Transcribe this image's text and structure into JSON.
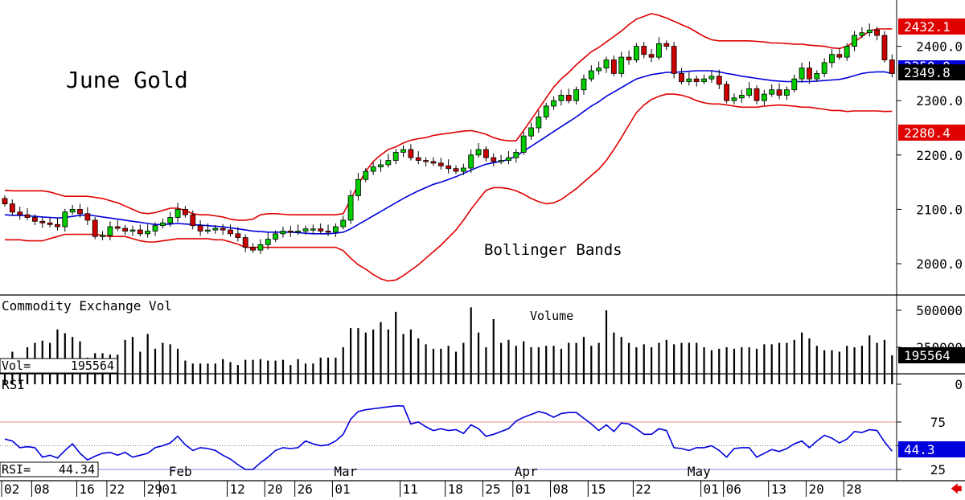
{
  "chart_data": [
    {
      "type": "candlestick",
      "title": "June Gold",
      "annotation": "Bollinger Bands",
      "ylim": [
        1960,
        2470
      ],
      "y_ticks": [
        "2400.0",
        "2300.0",
        "2200.0",
        "2100.0",
        "2000.0"
      ],
      "last_price": "2349.8",
      "upper_band_label": "2432.1",
      "lower_band_label": "2280.4",
      "mid_band_label_partial": "2350.0",
      "colors": {
        "up": "#00cc00",
        "down": "#cc0000",
        "upper_band": "#e00000",
        "lower_band": "#e00000",
        "mid_band": "#0000dd"
      },
      "closes": [
        2110,
        2095,
        2090,
        2085,
        2078,
        2075,
        2072,
        2068,
        2095,
        2100,
        2092,
        2080,
        2050,
        2052,
        2068,
        2065,
        2060,
        2062,
        2055,
        2060,
        2070,
        2075,
        2085,
        2100,
        2090,
        2070,
        2060,
        2062,
        2065,
        2062,
        2055,
        2048,
        2030,
        2025,
        2035,
        2045,
        2055,
        2060,
        2058,
        2060,
        2064,
        2064,
        2060,
        2058,
        2068,
        2080,
        2125,
        2155,
        2170,
        2178,
        2182,
        2190,
        2205,
        2210,
        2195,
        2190,
        2188,
        2185,
        2180,
        2175,
        2170,
        2176,
        2200,
        2210,
        2195,
        2188,
        2190,
        2195,
        2205,
        2235,
        2250,
        2270,
        2290,
        2300,
        2310,
        2300,
        2320,
        2340,
        2355,
        2360,
        2375,
        2350,
        2380,
        2375,
        2400,
        2385,
        2380,
        2405,
        2400,
        2350,
        2335,
        2340,
        2335,
        2340,
        2345,
        2330,
        2300,
        2305,
        2310,
        2322,
        2300,
        2312,
        2320,
        2310,
        2320,
        2340,
        2360,
        2340,
        2350,
        2370,
        2385,
        2380,
        2400,
        2420,
        2425,
        2430,
        2420,
        2375,
        2349.8
      ],
      "upper_band": [
        2135,
        2134,
        2134,
        2134,
        2134,
        2134,
        2132,
        2128,
        2124,
        2124,
        2124,
        2124,
        2122,
        2120,
        2116,
        2112,
        2106,
        2100,
        2094,
        2092,
        2094,
        2098,
        2102,
        2102,
        2098,
        2092,
        2090,
        2090,
        2088,
        2086,
        2082,
        2080,
        2080,
        2082,
        2090,
        2092,
        2092,
        2091,
        2090,
        2090,
        2090,
        2090,
        2090,
        2090,
        2090,
        2092,
        2118,
        2145,
        2170,
        2188,
        2200,
        2210,
        2215,
        2222,
        2227,
        2230,
        2232,
        2236,
        2238,
        2240,
        2242,
        2244,
        2245,
        2242,
        2238,
        2232,
        2228,
        2226,
        2226,
        2245,
        2265,
        2285,
        2305,
        2325,
        2340,
        2352,
        2366,
        2378,
        2390,
        2398,
        2408,
        2418,
        2428,
        2440,
        2450,
        2455,
        2460,
        2457,
        2452,
        2446,
        2440,
        2434,
        2426,
        2418,
        2412,
        2410,
        2410,
        2410,
        2410,
        2410,
        2409,
        2408,
        2406,
        2406,
        2405,
        2404,
        2404,
        2402,
        2401,
        2400,
        2397,
        2396,
        2400,
        2408,
        2418,
        2428,
        2432,
        2432,
        2432.1
      ],
      "mid_band": [
        2090,
        2089,
        2089,
        2088,
        2087,
        2086,
        2085,
        2084,
        2085,
        2087,
        2089,
        2090,
        2088,
        2086,
        2084,
        2082,
        2080,
        2078,
        2076,
        2074,
        2072,
        2072,
        2073,
        2074,
        2073,
        2072,
        2071,
        2070,
        2069,
        2068,
        2066,
        2064,
        2062,
        2060,
        2059,
        2058,
        2058,
        2058,
        2058,
        2057,
        2056,
        2055,
        2055,
        2055,
        2056,
        2058,
        2064,
        2072,
        2080,
        2088,
        2096,
        2104,
        2112,
        2120,
        2127,
        2134,
        2140,
        2146,
        2150,
        2155,
        2160,
        2166,
        2172,
        2178,
        2183,
        2186,
        2188,
        2192,
        2198,
        2207,
        2216,
        2225,
        2234,
        2243,
        2252,
        2261,
        2270,
        2280,
        2290,
        2298,
        2308,
        2316,
        2324,
        2332,
        2340,
        2344,
        2348,
        2350,
        2352,
        2352,
        2353,
        2354,
        2355,
        2355,
        2355,
        2353,
        2350,
        2348,
        2345,
        2343,
        2341,
        2339,
        2337,
        2336,
        2335,
        2335,
        2335,
        2335,
        2336,
        2337,
        2338,
        2339,
        2342,
        2346,
        2350,
        2352,
        2353,
        2353,
        2350
      ],
      "lower_band": [
        2044,
        2044,
        2044,
        2042,
        2042,
        2042,
        2046,
        2050,
        2054,
        2054,
        2054,
        2054,
        2054,
        2052,
        2050,
        2050,
        2050,
        2046,
        2042,
        2040,
        2040,
        2042,
        2044,
        2046,
        2046,
        2046,
        2046,
        2046,
        2044,
        2044,
        2040,
        2036,
        2030,
        2030,
        2030,
        2030,
        2030,
        2030,
        2030,
        2030,
        2030,
        2030,
        2030,
        2030,
        2030,
        2024,
        2010,
        1998,
        1990,
        1980,
        1972,
        1968,
        1970,
        1978,
        1988,
        1998,
        2010,
        2022,
        2034,
        2048,
        2062,
        2080,
        2100,
        2118,
        2135,
        2140,
        2140,
        2138,
        2134,
        2128,
        2120,
        2114,
        2110,
        2112,
        2118,
        2128,
        2138,
        2150,
        2162,
        2174,
        2190,
        2210,
        2232,
        2255,
        2278,
        2292,
        2302,
        2308,
        2312,
        2312,
        2310,
        2306,
        2300,
        2296,
        2294,
        2294,
        2292,
        2290,
        2288,
        2288,
        2288,
        2290,
        2291,
        2292,
        2291,
        2290,
        2288,
        2288,
        2286,
        2284,
        2282,
        2282,
        2280,
        2281,
        2281,
        2281,
        2281,
        2280,
        2280.4
      ]
    },
    {
      "type": "bar",
      "title": "Commodity Exchange Vol",
      "annotation": "Volume",
      "ylim": [
        0,
        550000
      ],
      "y_ticks": [
        "500000",
        "250000",
        "0"
      ],
      "readout_label": "Vol=",
      "readout_value": "195564",
      "last_value_label": "195564",
      "values": [
        145000,
        220000,
        170000,
        250000,
        280000,
        295000,
        280000,
        370000,
        345000,
        320000,
        290000,
        180000,
        210000,
        210000,
        200000,
        200000,
        300000,
        320000,
        220000,
        340000,
        240000,
        280000,
        270000,
        240000,
        160000,
        140000,
        140000,
        140000,
        140000,
        170000,
        150000,
        130000,
        165000,
        165000,
        170000,
        160000,
        160000,
        165000,
        130000,
        170000,
        140000,
        140000,
        180000,
        180000,
        180000,
        250000,
        380000,
        380000,
        350000,
        370000,
        420000,
        370000,
        490000,
        340000,
        370000,
        310000,
        270000,
        240000,
        240000,
        260000,
        220000,
        280000,
        520000,
        350000,
        250000,
        440000,
        280000,
        300000,
        260000,
        290000,
        250000,
        250000,
        260000,
        260000,
        240000,
        280000,
        280000,
        320000,
        260000,
        280000,
        500000,
        350000,
        320000,
        280000,
        250000,
        270000,
        250000,
        280000,
        300000,
        270000,
        280000,
        280000,
        280000,
        250000,
        230000,
        240000,
        250000,
        240000,
        250000,
        250000,
        240000,
        270000,
        270000,
        280000,
        280000,
        300000,
        350000,
        310000,
        260000,
        230000,
        230000,
        220000,
        260000,
        250000,
        260000,
        330000,
        280000,
        300000,
        195564
      ]
    },
    {
      "type": "line",
      "title": "RSI",
      "ylim": [
        15,
        100
      ],
      "y_ticks": [
        "75",
        "50",
        "25"
      ],
      "levels": [
        75,
        25
      ],
      "readout_label": "RSI=",
      "readout_value": "44.34",
      "last_value_label": "44.3",
      "values": [
        57,
        55,
        48,
        49,
        48,
        38,
        40,
        37,
        45,
        52,
        42,
        35,
        39,
        42,
        43,
        40,
        43,
        38,
        40,
        42,
        48,
        50,
        53,
        60,
        51,
        45,
        48,
        47,
        45,
        40,
        36,
        30,
        25,
        25,
        32,
        38,
        45,
        48,
        47,
        48,
        55,
        52,
        50,
        51,
        55,
        62,
        78,
        86,
        88,
        89,
        90,
        91,
        92,
        92,
        73,
        75,
        70,
        66,
        68,
        66,
        67,
        63,
        72,
        68,
        60,
        62,
        65,
        68,
        76,
        80,
        83,
        86,
        84,
        80,
        84,
        85,
        85,
        79,
        73,
        66,
        72,
        65,
        74,
        73,
        68,
        62,
        62,
        68,
        66,
        48,
        47,
        45,
        48,
        48,
        50,
        45,
        38,
        47,
        48,
        48,
        38,
        42,
        46,
        44,
        47,
        52,
        55,
        48,
        55,
        61,
        58,
        53,
        57,
        65,
        64,
        67,
        66,
        54,
        44.3
      ],
      "x_labels": [
        {
          "i": 0,
          "label": "02"
        },
        {
          "i": 4,
          "label": "08"
        },
        {
          "i": 10,
          "label": "16"
        },
        {
          "i": 14,
          "label": "22"
        },
        {
          "i": 19,
          "label": "29"
        },
        {
          "i": 21,
          "label": "01"
        },
        {
          "i": 30,
          "label": "12"
        },
        {
          "i": 35,
          "label": "20"
        },
        {
          "i": 39,
          "label": "26"
        },
        {
          "i": 44,
          "label": "01"
        },
        {
          "i": 53,
          "label": "11"
        },
        {
          "i": 59,
          "label": "18"
        },
        {
          "i": 64,
          "label": "25"
        },
        {
          "i": 68,
          "label": "01"
        },
        {
          "i": 73,
          "label": "08"
        },
        {
          "i": 78,
          "label": "15"
        },
        {
          "i": 84,
          "label": "22"
        },
        {
          "i": 93,
          "label": "01"
        },
        {
          "i": 96,
          "label": "06"
        },
        {
          "i": 102,
          "label": "13"
        },
        {
          "i": 107,
          "label": "20"
        },
        {
          "i": 112,
          "label": "28"
        }
      ],
      "month_labels": [
        {
          "i": 22,
          "label": "Feb"
        },
        {
          "i": 44,
          "label": "Mar"
        },
        {
          "i": 68,
          "label": "Apr"
        },
        {
          "i": 91,
          "label": "May"
        }
      ]
    }
  ]
}
